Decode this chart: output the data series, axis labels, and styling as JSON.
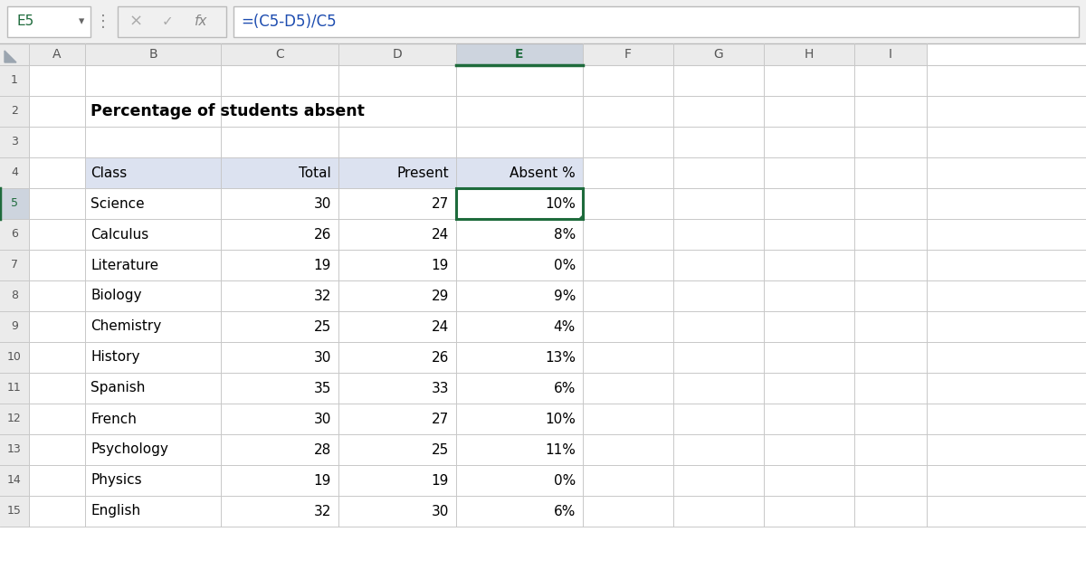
{
  "cell_ref": "E5",
  "formula": "=(C5-D5)/C5",
  "title": "Percentage of students absent",
  "headers": [
    "Class",
    "Total",
    "Present",
    "Absent %"
  ],
  "rows": [
    [
      "Science",
      30,
      27,
      "10%"
    ],
    [
      "Calculus",
      26,
      24,
      "8%"
    ],
    [
      "Literature",
      19,
      19,
      "0%"
    ],
    [
      "Biology",
      32,
      29,
      "9%"
    ],
    [
      "Chemistry",
      25,
      24,
      "4%"
    ],
    [
      "History",
      30,
      26,
      "13%"
    ],
    [
      "Spanish",
      35,
      33,
      "6%"
    ],
    [
      "French",
      30,
      27,
      "10%"
    ],
    [
      "Psychology",
      28,
      25,
      "11%"
    ],
    [
      "Physics",
      19,
      19,
      "0%"
    ],
    [
      "English",
      32,
      30,
      "6%"
    ]
  ],
  "col_letters": [
    "A",
    "B",
    "C",
    "D",
    "E",
    "F",
    "G",
    "H",
    "I"
  ],
  "bg_color": "#FFFFFF",
  "toolbar_bg": "#F0F0F0",
  "header_row_bg": "#DCE2F0",
  "col_header_bg": "#EBEBEB",
  "selected_col_bg": "#CDD4DE",
  "selected_cell_border": "#1E6B3C",
  "grid_color": "#C8C8C8",
  "text_color": "#000000",
  "header_text_color": "#555555",
  "row_num_selected_color": "#1E6B3C",
  "formula_color": "#1E4DB0"
}
